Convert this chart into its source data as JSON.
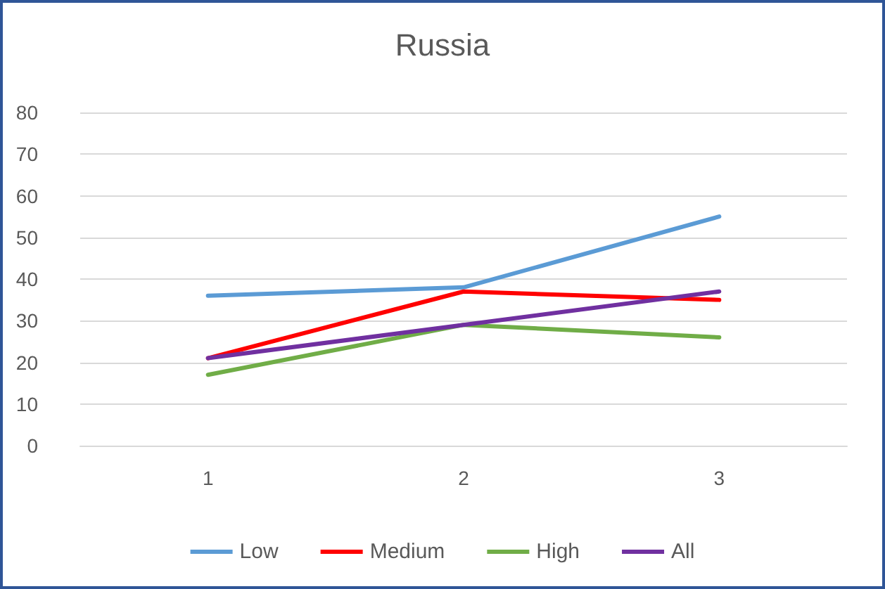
{
  "chart_data": {
    "type": "line",
    "title": "Russia",
    "categories": [
      "1",
      "2",
      "3"
    ],
    "series": [
      {
        "name": "Low",
        "color": "#5b9bd5",
        "values": [
          36,
          38,
          55
        ]
      },
      {
        "name": "Medium",
        "color": "#ff0000",
        "values": [
          21,
          37,
          35
        ]
      },
      {
        "name": "High",
        "color": "#70ad47",
        "values": [
          17,
          29,
          26
        ]
      },
      {
        "name": "All",
        "color": "#7030a0",
        "values": [
          21,
          29,
          37
        ]
      }
    ],
    "ylim": [
      0,
      80
    ],
    "yticks": [
      0,
      10,
      20,
      30,
      40,
      50,
      60,
      70,
      80
    ],
    "grid": "y",
    "legend": "bottom",
    "marker": "none",
    "line_style": "solid"
  }
}
